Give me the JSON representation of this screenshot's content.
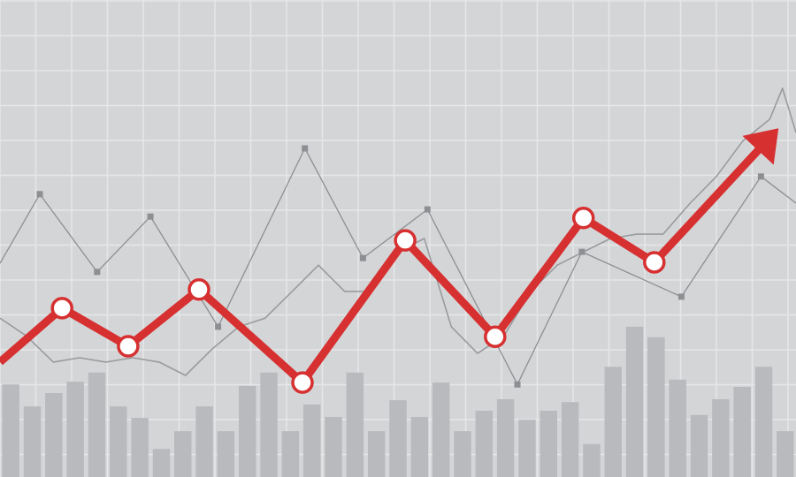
{
  "chart_data": [
    {
      "type": "bar",
      "categories": [
        null,
        null,
        null,
        null,
        null,
        null,
        null,
        null,
        null,
        null,
        null,
        null,
        null,
        null,
        null,
        null,
        null,
        null,
        null,
        null,
        null,
        null,
        null,
        null,
        null,
        null,
        null,
        null,
        null,
        null,
        null,
        null,
        null,
        null,
        null,
        null,
        null
      ],
      "values": [
        19.4,
        14.8,
        17.6,
        20,
        21.9,
        14.8,
        12.4,
        5.9,
        9.6,
        14.8,
        9.6,
        19.1,
        21.9,
        9.6,
        15.2,
        12.6,
        21.9,
        9.6,
        16.1,
        12.6,
        19.8,
        9.6,
        13.9,
        16.3,
        12,
        13.9,
        15.7,
        6.9,
        23.1,
        31.5,
        29.3,
        20.4,
        13,
        16.3,
        18.9,
        23.1,
        9.6
      ],
      "color": "#b9babd",
      "ylim": [
        0,
        100
      ]
    },
    {
      "type": "line",
      "xlim": [
        0,
        100
      ],
      "ylim": [
        0,
        100
      ],
      "series": [
        {
          "style": "noise",
          "color": "#9a9b9e",
          "x": [
            0,
            3.3,
            6.7,
            10,
            13.3,
            16.7,
            20,
            23.3,
            26.7,
            30,
            33.3,
            36.7,
            40,
            43.3,
            46.7,
            50,
            53.3,
            56.7,
            60,
            63.3,
            66.7,
            70,
            73.3,
            76.7,
            80,
            83.3,
            86.7,
            90,
            93.3,
            96.7,
            98.3,
            100
          ],
          "values": [
            33.3,
            29.6,
            24.1,
            25,
            24.1,
            25,
            24.1,
            21.3,
            26.9,
            31.5,
            33.3,
            38.9,
            44.4,
            38.9,
            38.9,
            47.2,
            50,
            31.5,
            25.9,
            29.6,
            38.9,
            44.4,
            47.2,
            50,
            50.9,
            50.9,
            57.4,
            63,
            70.4,
            75,
            81.5,
            72.2
          ]
        },
        {
          "style": "square",
          "color": "#8e8f92",
          "x": [
            0,
            5,
            12.2,
            18.9,
            27.4,
            38.3,
            45.6,
            53.7,
            65,
            73.1,
            85.6,
            95.6,
            100
          ],
          "values": [
            44.8,
            59.3,
            43,
            54.6,
            31.5,
            68.9,
            45.9,
            56.1,
            19.4,
            47.2,
            37.8,
            63,
            57.4
          ]
        },
        {
          "style": "arrow",
          "color": "#d63031",
          "x": [
            0,
            7.8,
            16.1,
            25,
            38,
            50.9,
            62.2,
            73.3,
            82.2,
            97.8
          ],
          "values": [
            24.1,
            35.4,
            27.4,
            39.3,
            19.8,
            49.6,
            29.4,
            54.3,
            45,
            73.1
          ]
        }
      ]
    }
  ]
}
